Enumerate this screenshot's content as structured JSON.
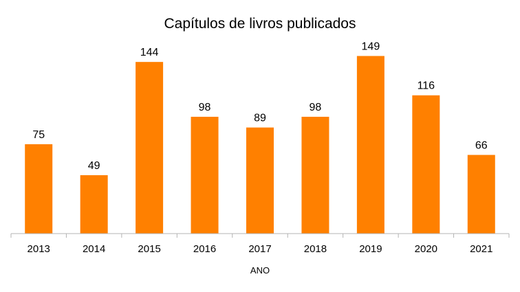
{
  "chart_data": {
    "type": "bar",
    "title": "Capítulos de livros publicados",
    "xlabel": "ANO",
    "ylabel": "",
    "categories": [
      "2013",
      "2014",
      "2015",
      "2016",
      "2017",
      "2018",
      "2019",
      "2020",
      "2021"
    ],
    "values": [
      75,
      49,
      144,
      98,
      89,
      98,
      149,
      116,
      66
    ],
    "ylim": [
      0,
      160
    ],
    "grid": false,
    "legend": "none",
    "bar_color": "#ff8000",
    "data_labels": true
  }
}
